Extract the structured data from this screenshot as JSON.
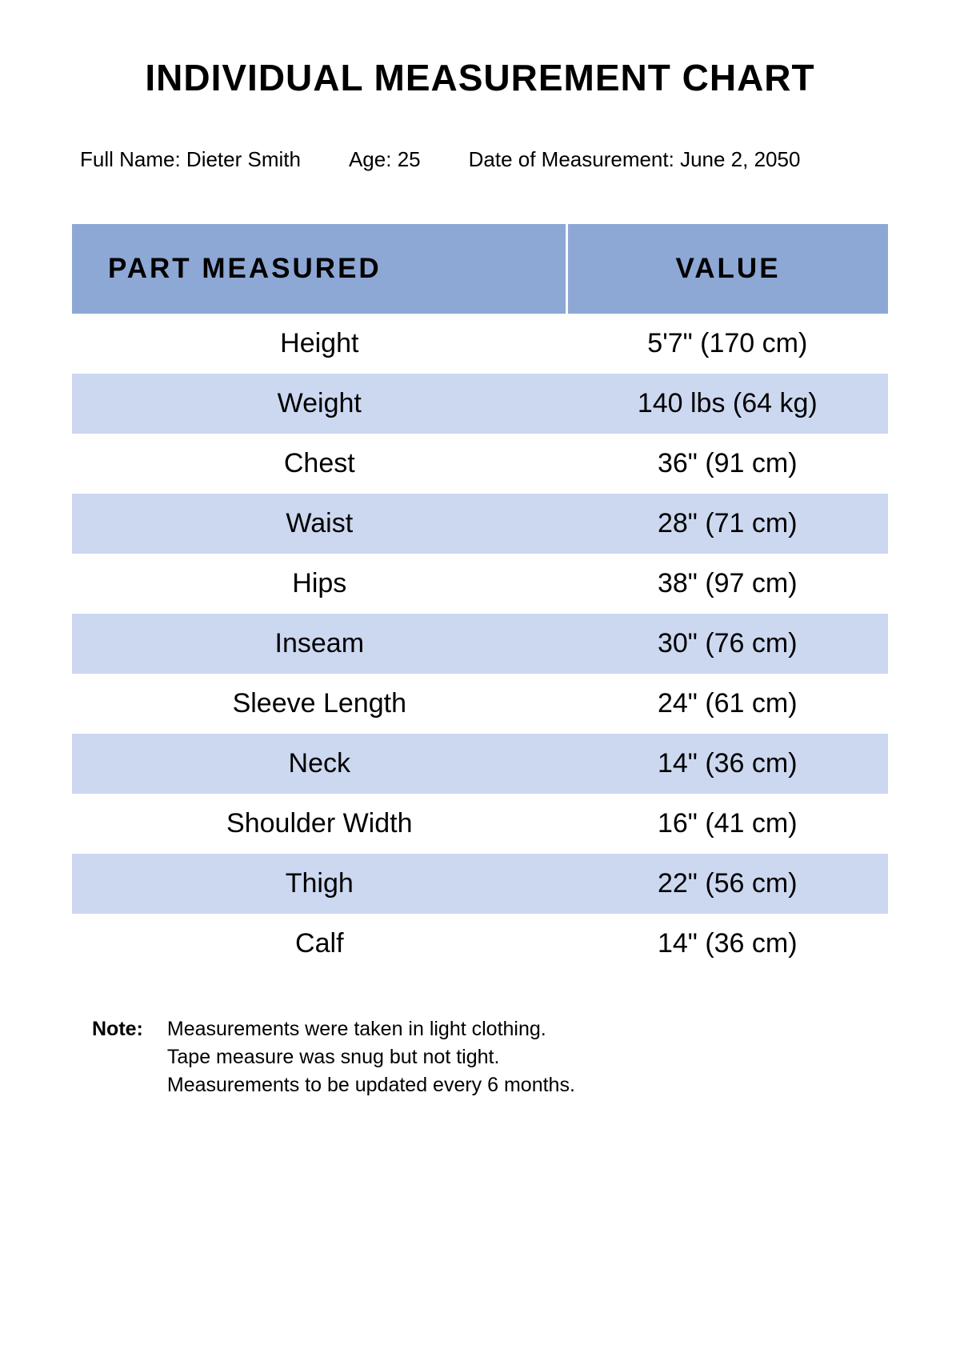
{
  "title": "INDIVIDUAL MEASUREMENT CHART",
  "meta": {
    "name_label": "Full Name: ",
    "name_value": "Dieter Smith",
    "age_label": "Age: ",
    "age_value": "25",
    "date_label": "Date of Measurement: ",
    "date_value": "June 2, 2050"
  },
  "table": {
    "columns": [
      "PART MEASURED",
      "VALUE"
    ],
    "header_bg": "#8da8d4",
    "row_bg_even": "#ffffff",
    "row_bg_odd": "#ccd8f0",
    "header_fontsize": 35,
    "cell_fontsize": 34,
    "rows": [
      {
        "part": "Height",
        "value": "5'7\" (170 cm)"
      },
      {
        "part": "Weight",
        "value": "140 lbs (64 kg)"
      },
      {
        "part": "Chest",
        "value": "36\" (91 cm)"
      },
      {
        "part": "Waist",
        "value": "28\" (71 cm)"
      },
      {
        "part": "Hips",
        "value": "38\" (97 cm)"
      },
      {
        "part": "Inseam",
        "value": "30\" (76 cm)"
      },
      {
        "part": "Sleeve Length",
        "value": "24\" (61 cm)"
      },
      {
        "part": "Neck",
        "value": "14\" (36 cm)"
      },
      {
        "part": "Shoulder Width",
        "value": "16\" (41 cm)"
      },
      {
        "part": "Thigh",
        "value": "22\" (56 cm)"
      },
      {
        "part": "Calf",
        "value": "14\" (36 cm)"
      }
    ]
  },
  "notes": {
    "label": "Note:",
    "lines": [
      "Measurements were taken in light clothing.",
      "Tape measure was snug but not tight.",
      "Measurements to be updated every 6 months."
    ]
  }
}
